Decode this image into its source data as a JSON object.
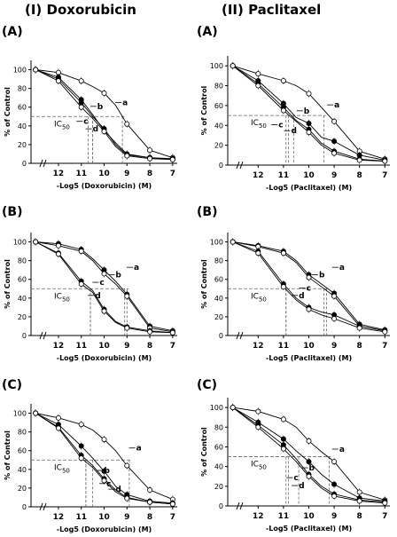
{
  "column_titles": [
    "(I) Doxorubicin",
    "(II) Paclitaxel"
  ],
  "ic50_label": "IC50",
  "chart_data": [
    {
      "type": "line",
      "column": "(I) Doxorubicin",
      "panel": "(A)",
      "xlabel": "-Log5 (Doxorubicin) (M)",
      "ylabel": "% of Control",
      "x_ticks": [
        "12",
        "11",
        "10",
        "9",
        "8",
        "7"
      ],
      "y_ticks": [
        "0",
        "20",
        "40",
        "60",
        "80",
        "100"
      ],
      "xlim": [
        13.2,
        6.8
      ],
      "ylim": [
        0,
        110
      ],
      "ic50_line_y": 50,
      "x": [
        13,
        12,
        11,
        10.5,
        10,
        9.5,
        9,
        8,
        7
      ],
      "series": [
        {
          "label": "a",
          "marker": "open",
          "y": [
            100,
            97,
            88,
            82,
            75,
            62,
            42,
            14,
            6
          ],
          "ic50": 9.2
        },
        {
          "label": "b",
          "marker": "filled",
          "y": [
            100,
            92,
            68,
            52,
            35,
            22,
            10,
            6,
            5
          ],
          "ic50": 10.5
        },
        {
          "label": "c",
          "marker": "filled",
          "y": [
            100,
            90,
            65,
            50,
            37,
            20,
            9,
            6,
            4
          ],
          "ic50": 10.5
        },
        {
          "label": "d",
          "marker": "open",
          "y": [
            100,
            88,
            60,
            48,
            34,
            18,
            8,
            5,
            4
          ],
          "ic50": 10.7
        }
      ]
    },
    {
      "type": "line",
      "column": "(II) Paclitaxel",
      "panel": "(A)",
      "xlabel": "-Log5 (Paclitaxel) (M)",
      "ylabel": "% of Control",
      "x_ticks": [
        "12",
        "11",
        "10",
        "9",
        "8",
        "7"
      ],
      "y_ticks": [
        "0",
        "20",
        "40",
        "60",
        "80",
        "100"
      ],
      "xlim": [
        13.2,
        6.8
      ],
      "ylim": [
        0,
        110
      ],
      "ic50_line_y": 50,
      "x": [
        13,
        12,
        11,
        10.5,
        10,
        9.5,
        9,
        8,
        7
      ],
      "series": [
        {
          "label": "a",
          "marker": "open",
          "y": [
            100,
            92,
            85,
            80,
            72,
            58,
            44,
            14,
            6
          ],
          "ic50": 9.4
        },
        {
          "label": "b",
          "marker": "filled",
          "y": [
            100,
            85,
            62,
            48,
            42,
            28,
            24,
            10,
            5
          ],
          "ic50": 10.6
        },
        {
          "label": "c",
          "marker": "filled",
          "y": [
            100,
            82,
            58,
            45,
            36,
            22,
            14,
            6,
            4
          ],
          "ic50": 10.9
        },
        {
          "label": "d",
          "marker": "open",
          "y": [
            100,
            80,
            55,
            44,
            33,
            20,
            12,
            5,
            4
          ],
          "ic50": 10.8
        }
      ]
    },
    {
      "type": "line",
      "column": "(I) Doxorubicin",
      "panel": "(B)",
      "xlabel": "-Log5 (Doxorubicin) (M)",
      "ylabel": "% of Control",
      "x_ticks": [
        "12",
        "11",
        "10",
        "9",
        "8",
        "7"
      ],
      "y_ticks": [
        "0",
        "20",
        "40",
        "60",
        "80",
        "100"
      ],
      "xlim": [
        13.2,
        6.8
      ],
      "ylim": [
        0,
        110
      ],
      "ic50_line_y": 50,
      "x": [
        13,
        12,
        11,
        10.5,
        10,
        9.5,
        9,
        8,
        7
      ],
      "series": [
        {
          "label": "a",
          "marker": "filled",
          "y": [
            100,
            98,
            92,
            82,
            70,
            58,
            44,
            10,
            5
          ],
          "ic50": 9.0
        },
        {
          "label": "b",
          "marker": "open",
          "y": [
            100,
            96,
            90,
            80,
            66,
            55,
            42,
            8,
            4
          ],
          "ic50": 9.1
        },
        {
          "label": "c",
          "marker": "filled",
          "y": [
            100,
            88,
            58,
            48,
            28,
            15,
            9,
            5,
            3
          ],
          "ic50": 10.6
        },
        {
          "label": "d",
          "marker": "open",
          "y": [
            100,
            87,
            55,
            46,
            26,
            14,
            8,
            4,
            3
          ],
          "ic50": 10.6
        }
      ]
    },
    {
      "type": "line",
      "column": "(II) Paclitaxel",
      "panel": "(B)",
      "xlabel": "-Log5 (Paclitaxel) (M)",
      "ylabel": "% of Control",
      "x_ticks": [
        "12",
        "11",
        "10",
        "9",
        "8",
        "7"
      ],
      "y_ticks": [
        "0",
        "20",
        "40",
        "60",
        "80",
        "100"
      ],
      "xlim": [
        13.2,
        6.8
      ],
      "ylim": [
        0,
        110
      ],
      "ic50_line_y": 50,
      "x": [
        13,
        12,
        11,
        10.5,
        10,
        9.5,
        9,
        8,
        7
      ],
      "series": [
        {
          "label": "a",
          "marker": "filled",
          "y": [
            100,
            96,
            90,
            80,
            65,
            55,
            45,
            12,
            6
          ],
          "ic50": 9.3
        },
        {
          "label": "b",
          "marker": "open",
          "y": [
            100,
            95,
            88,
            78,
            62,
            52,
            42,
            10,
            5
          ],
          "ic50": 9.4
        },
        {
          "label": "c",
          "marker": "filled",
          "y": [
            100,
            90,
            55,
            40,
            30,
            25,
            22,
            10,
            5
          ],
          "ic50": 10.9
        },
        {
          "label": "d",
          "marker": "open",
          "y": [
            100,
            88,
            52,
            38,
            28,
            22,
            18,
            8,
            4
          ],
          "ic50": 10.9
        }
      ]
    },
    {
      "type": "line",
      "column": "(I) Doxorubicin",
      "panel": "(C)",
      "xlabel": "-Log5 (Doxorubicin) (M)",
      "ylabel": "% of Control",
      "x_ticks": [
        "12",
        "11",
        "10",
        "9",
        "8",
        "7"
      ],
      "y_ticks": [
        "0",
        "20",
        "40",
        "60",
        "80",
        "100"
      ],
      "xlim": [
        13.2,
        6.8
      ],
      "ylim": [
        0,
        110
      ],
      "ic50_line_y": 50,
      "x": [
        13,
        12,
        11,
        10.5,
        10,
        9.5,
        9,
        8,
        7
      ],
      "series": [
        {
          "label": "a",
          "marker": "open",
          "y": [
            100,
            95,
            88,
            82,
            72,
            60,
            44,
            18,
            8
          ],
          "ic50": 8.9
        },
        {
          "label": "b",
          "marker": "filled",
          "y": [
            100,
            88,
            65,
            52,
            38,
            22,
            13,
            6,
            4
          ],
          "ic50": 10.5
        },
        {
          "label": "c",
          "marker": "filled",
          "y": [
            100,
            85,
            55,
            44,
            30,
            18,
            10,
            5,
            3
          ],
          "ic50": 10.8
        },
        {
          "label": "d",
          "marker": "open",
          "y": [
            100,
            84,
            52,
            42,
            28,
            16,
            9,
            5,
            3
          ],
          "ic50": 10.8
        }
      ]
    },
    {
      "type": "line",
      "column": "(II) Paclitaxel",
      "panel": "(C)",
      "xlabel": "-Log5 (Paclitaxel) (M)",
      "ylabel": "% of Control",
      "x_ticks": [
        "12",
        "11",
        "10",
        "9",
        "8",
        "7"
      ],
      "y_ticks": [
        "0",
        "20",
        "40",
        "60",
        "80",
        "100"
      ],
      "xlim": [
        13.2,
        6.8
      ],
      "ylim": [
        0,
        110
      ],
      "ic50_line_y": 50,
      "x": [
        13,
        12,
        11,
        10.5,
        10,
        9.5,
        9,
        8,
        7
      ],
      "series": [
        {
          "label": "a",
          "marker": "open",
          "y": [
            100,
            96,
            88,
            80,
            66,
            55,
            45,
            14,
            6
          ],
          "ic50": 9.2
        },
        {
          "label": "b",
          "marker": "filled",
          "y": [
            100,
            85,
            68,
            56,
            45,
            32,
            22,
            8,
            5
          ],
          "ic50": 10.4
        },
        {
          "label": "c",
          "marker": "filled",
          "y": [
            100,
            82,
            62,
            48,
            32,
            20,
            12,
            6,
            4
          ],
          "ic50": 10.9
        },
        {
          "label": "d",
          "marker": "open",
          "y": [
            100,
            80,
            58,
            45,
            30,
            18,
            10,
            5,
            3
          ],
          "ic50": 10.8
        }
      ]
    }
  ]
}
